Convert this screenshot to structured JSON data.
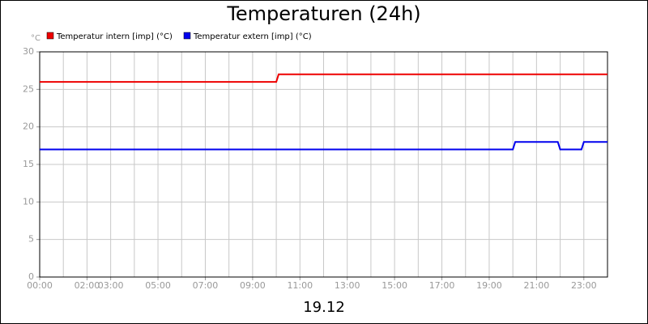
{
  "chart_data": {
    "type": "line",
    "title": "Temperaturen (24h)",
    "ylabel": "°C",
    "xlabel": "19.12",
    "xlim": [
      0,
      24
    ],
    "ylim": [
      0,
      30
    ],
    "yticks": [
      0,
      5,
      10,
      15,
      20,
      25,
      30
    ],
    "xticks": [
      {
        "value": 0,
        "label": "00:00"
      },
      {
        "value": 2,
        "label": "02:00"
      },
      {
        "value": 3,
        "label": "03:00"
      },
      {
        "value": 5,
        "label": "05:00"
      },
      {
        "value": 7,
        "label": "07:00"
      },
      {
        "value": 9,
        "label": "09:00"
      },
      {
        "value": 11,
        "label": "11:00"
      },
      {
        "value": 13,
        "label": "13:00"
      },
      {
        "value": 15,
        "label": "15:00"
      },
      {
        "value": 17,
        "label": "17:00"
      },
      {
        "value": 19,
        "label": "19:00"
      },
      {
        "value": 21,
        "label": "21:00"
      },
      {
        "value": 23,
        "label": "23:00"
      }
    ],
    "grid": true,
    "legend": "top-left",
    "series": [
      {
        "name": "Temperatur intern [imp] (°C)",
        "color": "#ee0000",
        "x": [
          0,
          10.0,
          10.1,
          24
        ],
        "values": [
          26,
          26,
          27,
          27
        ]
      },
      {
        "name": "Temperatur extern [imp] (°C)",
        "color": "#0000ee",
        "x": [
          0,
          20.0,
          20.1,
          21.9,
          22.0,
          22.9,
          23.0,
          24
        ],
        "values": [
          17,
          17,
          18,
          18,
          17,
          17,
          18,
          18
        ]
      }
    ]
  }
}
